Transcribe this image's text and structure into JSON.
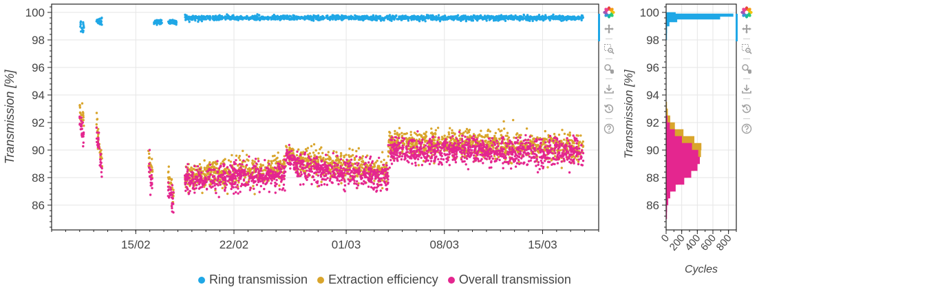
{
  "colors": {
    "ring": "#1fa7e6",
    "extraction": "#d9a52c",
    "overall": "#e4268f",
    "grid": "#e6e6e6",
    "axis": "#222222",
    "text": "#444444"
  },
  "legend": {
    "items": [
      {
        "label": "Ring transmission",
        "color": "#1fa7e6"
      },
      {
        "label": "Extraction efficiency",
        "color": "#d9a52c"
      },
      {
        "label": "Overall transmission",
        "color": "#e4268f"
      }
    ]
  },
  "toolbar": {
    "icons": [
      "bokeh-logo-icon",
      "pan-icon",
      "box-zoom-icon",
      "wheel-zoom-icon",
      "save-icon",
      "reset-icon",
      "help-icon"
    ]
  },
  "chart_data": [
    {
      "type": "scatter",
      "ylabel": "Transmission [%]",
      "xlabel": "",
      "x_tick_labels": [
        "15/02",
        "22/02",
        "01/03",
        "08/03",
        "15/03"
      ],
      "x_axis": "date",
      "xlim": [
        "2024-02-09",
        "2024-03-19"
      ],
      "ylim": [
        84.2,
        100.6
      ],
      "y_ticks": [
        86,
        88,
        90,
        92,
        94,
        96,
        98,
        100
      ],
      "grid": true,
      "legend_placement": "below",
      "series": [
        {
          "name": "Ring transmission",
          "segments": [
            {
              "start": "2024-02-11",
              "end": "2024-02-11.3",
              "mean": 99.0,
              "spread": 0.5
            },
            {
              "start": "2024-02-12.2",
              "end": "2024-02-12.6",
              "mean": 99.4,
              "spread": 0.3
            },
            {
              "start": "2024-02-16.3",
              "end": "2024-02-16.9",
              "mean": 99.3,
              "spread": 0.15
            },
            {
              "start": "2024-02-17.3",
              "end": "2024-02-17.9",
              "mean": 99.3,
              "spread": 0.15
            },
            {
              "start": "2024-02-18.5",
              "end": "2024-03-17.9",
              "mean": 99.6,
              "spread": 0.15
            }
          ]
        },
        {
          "name": "Extraction efficiency",
          "segments": [
            {
              "start": "2024-02-11",
              "end": "2024-02-11.3",
              "mean_start": 92.8,
              "mean_end": 91.8,
              "spread": 0.8
            },
            {
              "start": "2024-02-12.2",
              "end": "2024-02-12.6",
              "mean_start": 92.0,
              "mean_end": 88.8,
              "spread": 0.8
            },
            {
              "start": "2024-02-15.9",
              "end": "2024-02-16.2",
              "mean_start": 89.5,
              "mean_end": 88.0,
              "spread": 0.9
            },
            {
              "start": "2024-02-17.3",
              "end": "2024-02-17.7",
              "mean_start": 88.0,
              "mean_end": 86.5,
              "spread": 1.0
            },
            {
              "start": "2024-02-18.5",
              "end": "2024-02-25.7",
              "mean_start": 88.1,
              "mean_end": 88.6,
              "spread": 0.9
            },
            {
              "start": "2024-02-25.7",
              "end": "2024-02-26.4",
              "mean_start": 90.0,
              "mean_end": 89.4,
              "spread": 0.7
            },
            {
              "start": "2024-02-26.4",
              "end": "2024-03-04.0",
              "mean_start": 89.2,
              "mean_end": 88.5,
              "spread": 0.9
            },
            {
              "start": "2024-03-04.0",
              "end": "2024-03-17.9",
              "mean_start": 90.5,
              "mean_end": 90.2,
              "spread": 0.9
            }
          ]
        },
        {
          "name": "Overall transmission",
          "segments": [
            {
              "start": "2024-02-11",
              "end": "2024-02-11.3",
              "mean_start": 92.0,
              "mean_end": 91.0,
              "spread": 0.8
            },
            {
              "start": "2024-02-12.2",
              "end": "2024-02-12.6",
              "mean_start": 91.5,
              "mean_end": 88.4,
              "spread": 0.8
            },
            {
              "start": "2024-02-15.9",
              "end": "2024-02-16.2",
              "mean_start": 88.8,
              "mean_end": 87.4,
              "spread": 0.9
            },
            {
              "start": "2024-02-17.3",
              "end": "2024-02-17.7",
              "mean_start": 87.5,
              "mean_end": 85.8,
              "spread": 1.0
            },
            {
              "start": "2024-02-18.5",
              "end": "2024-02-25.7",
              "mean_start": 87.8,
              "mean_end": 88.2,
              "spread": 0.9
            },
            {
              "start": "2024-02-25.7",
              "end": "2024-02-26.4",
              "mean_start": 89.6,
              "mean_end": 89.0,
              "spread": 0.7
            },
            {
              "start": "2024-02-26.4",
              "end": "2024-03-04.0",
              "mean_start": 88.8,
              "mean_end": 88.0,
              "spread": 0.9
            },
            {
              "start": "2024-03-04.0",
              "end": "2024-03-17.9",
              "mean_start": 90.0,
              "mean_end": 89.8,
              "spread": 0.9
            }
          ]
        }
      ]
    },
    {
      "type": "bar",
      "orientation": "horizontal",
      "ylabel": "Transmission [%]",
      "xlabel": "Cycles",
      "x_ticks": [
        0,
        200,
        400,
        600,
        800
      ],
      "xlim": [
        0,
        900
      ],
      "ylim": [
        84.2,
        100.6
      ],
      "y_ticks": [
        86,
        88,
        90,
        92,
        94,
        96,
        98,
        100
      ],
      "grid": true,
      "series": [
        {
          "name": "Ring transmission",
          "bins": [
            {
              "y0": 98.0,
              "y1": 98.5,
              "count": 5
            },
            {
              "y0": 98.5,
              "y1": 99.0,
              "count": 10
            },
            {
              "y0": 99.0,
              "y1": 99.3,
              "count": 40
            },
            {
              "y0": 99.3,
              "y1": 99.5,
              "count": 140
            },
            {
              "y0": 99.5,
              "y1": 99.7,
              "count": 690
            },
            {
              "y0": 99.7,
              "y1": 99.9,
              "count": 860
            },
            {
              "y0": 99.9,
              "y1": 100.0,
              "count": 120
            }
          ]
        },
        {
          "name": "Extraction efficiency",
          "bins": [
            {
              "y0": 86.0,
              "y1": 86.5,
              "count": 8
            },
            {
              "y0": 86.5,
              "y1": 87.0,
              "count": 25
            },
            {
              "y0": 87.0,
              "y1": 87.5,
              "count": 70
            },
            {
              "y0": 87.5,
              "y1": 88.0,
              "count": 150
            },
            {
              "y0": 88.0,
              "y1": 88.5,
              "count": 270
            },
            {
              "y0": 88.5,
              "y1": 89.0,
              "count": 360
            },
            {
              "y0": 89.0,
              "y1": 89.5,
              "count": 420
            },
            {
              "y0": 89.5,
              "y1": 90.0,
              "count": 445
            },
            {
              "y0": 90.0,
              "y1": 90.5,
              "count": 450
            },
            {
              "y0": 90.5,
              "y1": 91.0,
              "count": 360
            },
            {
              "y0": 91.0,
              "y1": 91.5,
              "count": 220
            },
            {
              "y0": 91.5,
              "y1": 92.0,
              "count": 110
            },
            {
              "y0": 92.0,
              "y1": 92.5,
              "count": 50
            },
            {
              "y0": 92.5,
              "y1": 93.0,
              "count": 20
            },
            {
              "y0": 93.0,
              "y1": 93.5,
              "count": 8
            }
          ]
        },
        {
          "name": "Overall transmission",
          "bins": [
            {
              "y0": 85.0,
              "y1": 85.5,
              "count": 6
            },
            {
              "y0": 85.5,
              "y1": 86.0,
              "count": 10
            },
            {
              "y0": 86.0,
              "y1": 86.5,
              "count": 25
            },
            {
              "y0": 86.5,
              "y1": 87.0,
              "count": 50
            },
            {
              "y0": 87.0,
              "y1": 87.5,
              "count": 120
            },
            {
              "y0": 87.5,
              "y1": 88.0,
              "count": 230
            },
            {
              "y0": 88.0,
              "y1": 88.5,
              "count": 320
            },
            {
              "y0": 88.5,
              "y1": 89.0,
              "count": 400
            },
            {
              "y0": 89.0,
              "y1": 89.5,
              "count": 430
            },
            {
              "y0": 89.5,
              "y1": 90.0,
              "count": 410
            },
            {
              "y0": 90.0,
              "y1": 90.5,
              "count": 330
            },
            {
              "y0": 90.5,
              "y1": 91.0,
              "count": 200
            },
            {
              "y0": 91.0,
              "y1": 91.5,
              "count": 110
            },
            {
              "y0": 91.5,
              "y1": 92.0,
              "count": 45
            },
            {
              "y0": 92.0,
              "y1": 92.5,
              "count": 15
            }
          ]
        }
      ]
    }
  ]
}
